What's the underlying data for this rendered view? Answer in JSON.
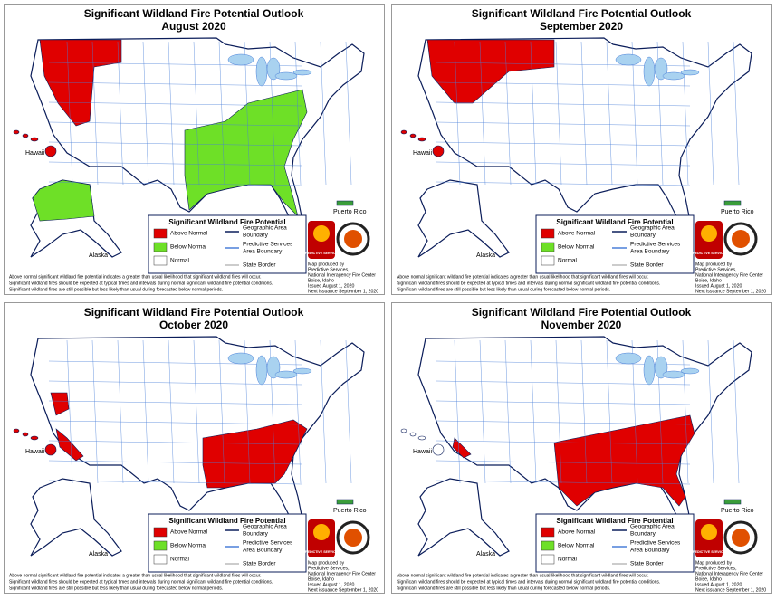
{
  "title": "Significant Wildland Fire Potential Outlook",
  "panels": [
    {
      "month": "August 2020"
    },
    {
      "month": "September 2020"
    },
    {
      "month": "October 2020"
    },
    {
      "month": "November 2020"
    }
  ],
  "labels": {
    "hawaii": "Hawaii",
    "alaska": "Alaska",
    "puerto_rico": "Puerto Rico"
  },
  "legend": {
    "title": "Significant Wildland Fire Potential",
    "above": "Above Normal",
    "below": "Below Normal",
    "normal": "Normal",
    "geo_1": "Geographic Area",
    "geo_2": "Boundary",
    "psa_1": "Predictive Services",
    "psa_2": "Area Boundary",
    "state": "State Border"
  },
  "logo": "PREDICTIVE SERVICES",
  "credit": [
    "Map produced by",
    "Predictive Services,",
    "National Interagency Fire Center",
    "Boise, Idaho",
    "Issued August 1, 2020",
    "Next issuance September 1, 2020"
  ],
  "notes": [
    "Above normal significant wildland fire potential indicates a greater than usual likelihood that significant wildland fires will occur.",
    "Significant wildland fires should be expected at typical times and intervals during normal significant wildland fire potential conditions.",
    "Significant wildland fires are still possible but less likely than usual during forecasted below normal periods."
  ]
}
